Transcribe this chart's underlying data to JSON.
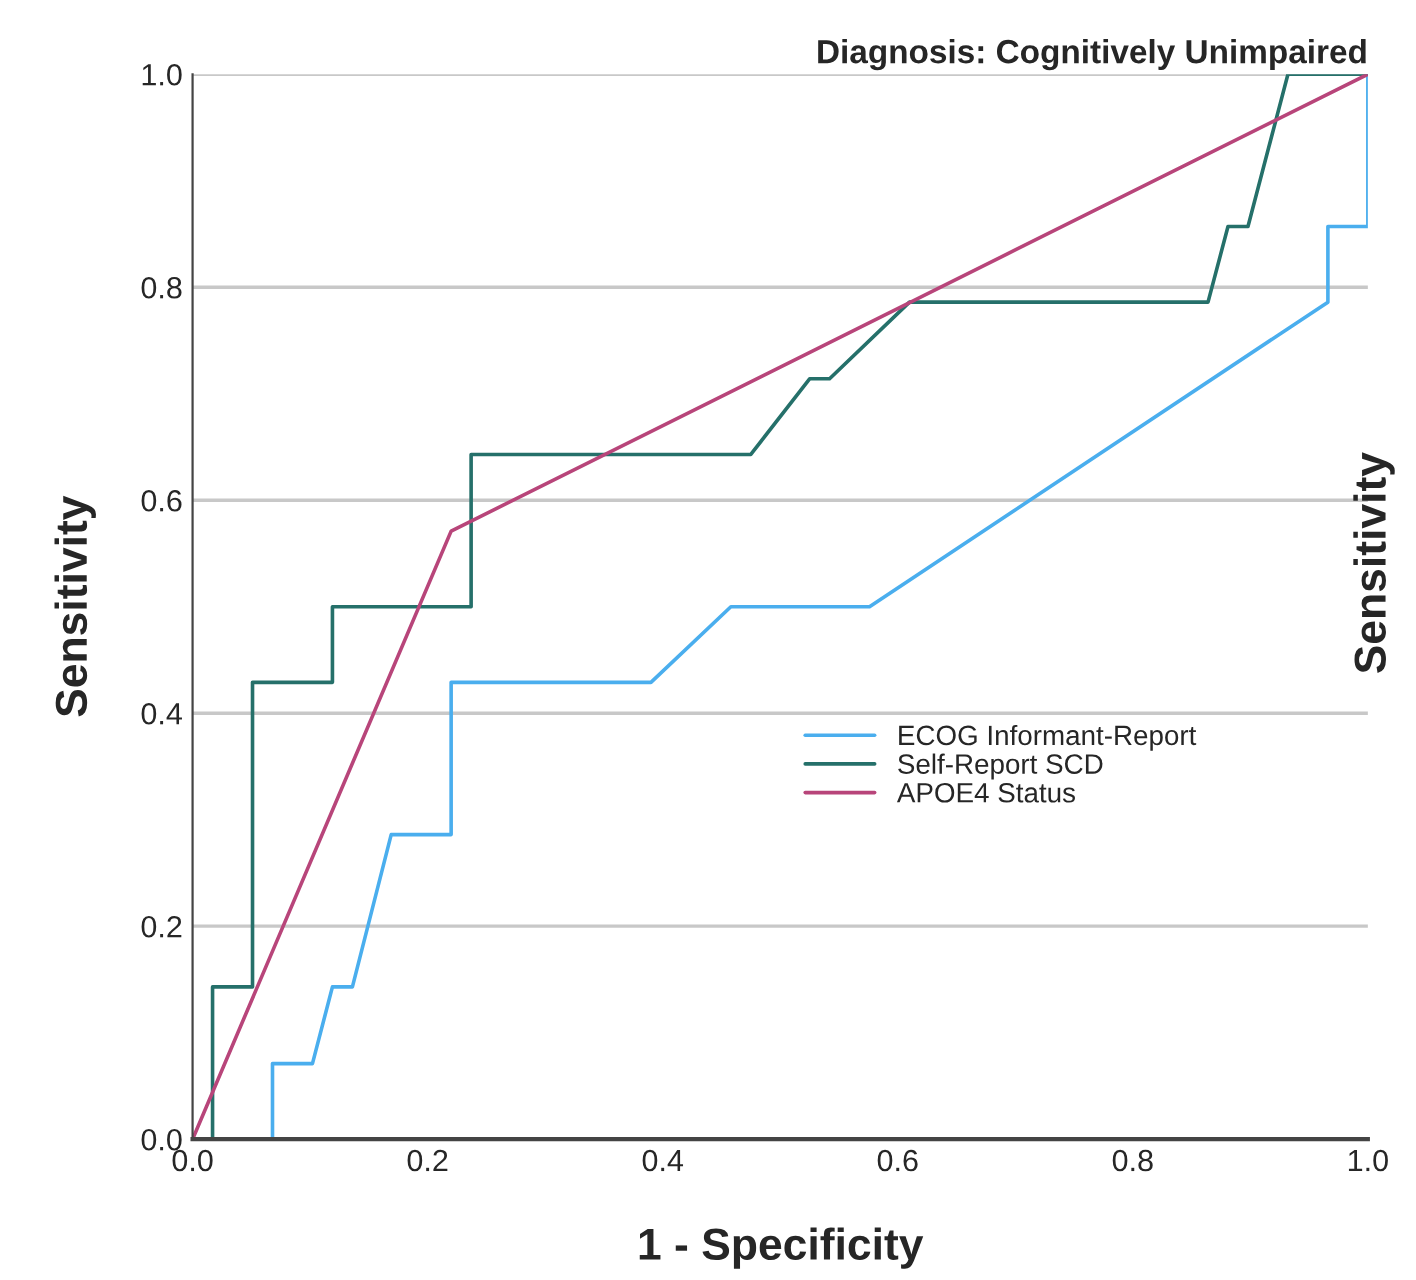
{
  "chart_data": {
    "type": "line",
    "title": "Diagnosis: Cognitively Unimpaired",
    "xlabel": "1 - Specificity",
    "ylabel": "Sensitivity",
    "y2label": "Sensitivity",
    "xlim": [
      0,
      1
    ],
    "ylim": [
      0,
      1
    ],
    "xticks": [
      {
        "value": 0,
        "label": "0.0"
      },
      0.2,
      0.4,
      0.6,
      0.8,
      {
        "value": 1,
        "label": "1.0"
      }
    ],
    "yticks": [
      {
        "value": 0,
        "label": "0.0"
      },
      0.2,
      0.4,
      0.6,
      0.8,
      {
        "value": 1,
        "label": "1.0"
      }
    ],
    "grid": "y",
    "legend": "right",
    "marker": "none",
    "line_style": "solid",
    "series": [
      {
        "name": "ECOG Informant-Report",
        "color": "#4aaeee",
        "x": [
          0,
          0.068,
          0.068,
          0.102,
          0.119,
          0.136,
          0.169,
          0.22,
          0.22,
          0.39,
          0.458,
          0.576,
          0.966,
          0.966,
          1,
          1
        ],
        "values": [
          0,
          0,
          0.071,
          0.071,
          0.143,
          0.143,
          0.286,
          0.286,
          0.429,
          0.429,
          0.5,
          0.5,
          0.786,
          0.857,
          0.857,
          1
        ]
      },
      {
        "name": "Self-Report SCD",
        "color": "#25706a",
        "x": [
          0,
          0.017,
          0.017,
          0.051,
          0.051,
          0.119,
          0.119,
          0.237,
          0.237,
          0.475,
          0.525,
          0.542,
          0.61,
          0.864,
          0.881,
          0.898,
          0.932,
          1
        ],
        "values": [
          0,
          0,
          0.143,
          0.143,
          0.429,
          0.429,
          0.5,
          0.5,
          0.643,
          0.643,
          0.714,
          0.714,
          0.786,
          0.786,
          0.857,
          0.857,
          1,
          1
        ]
      },
      {
        "name": "APOE4 Status",
        "color": "#b8457a",
        "x": [
          0,
          0.22,
          1
        ],
        "values": [
          0,
          0.571,
          1
        ]
      }
    ]
  }
}
